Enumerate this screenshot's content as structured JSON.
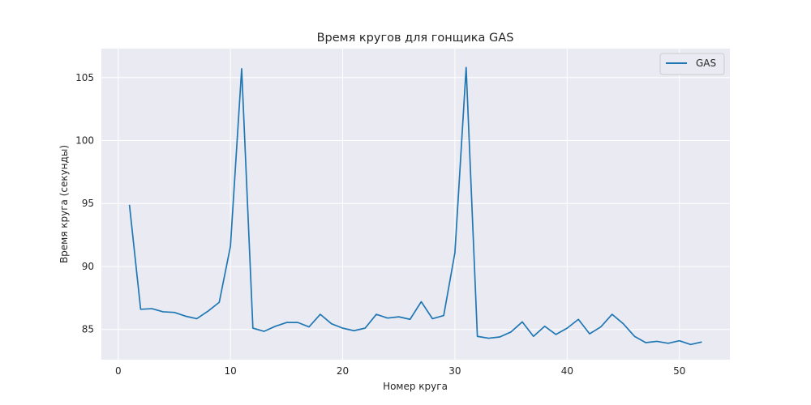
{
  "chart_data": {
    "type": "line",
    "title": "Время кругов для гонщика GAS",
    "xlabel": "Номер круга",
    "ylabel": "Время круга (секунды)",
    "xlim": [
      -1.5,
      54.5
    ],
    "ylim": [
      82.6,
      107.3
    ],
    "x_ticks": [
      0,
      10,
      20,
      30,
      40,
      50
    ],
    "y_ticks": [
      85,
      90,
      95,
      100,
      105
    ],
    "grid": true,
    "legend_position": "top-right",
    "colors": {
      "background": "#eaeaf2",
      "grid": "#ffffff",
      "line": "#1f77b4"
    },
    "series": [
      {
        "name": "GAS",
        "x": [
          1,
          2,
          3,
          4,
          5,
          6,
          7,
          8,
          9,
          10,
          11,
          12,
          13,
          14,
          15,
          16,
          17,
          18,
          19,
          20,
          21,
          22,
          23,
          24,
          25,
          26,
          27,
          28,
          29,
          30,
          31,
          32,
          33,
          34,
          35,
          36,
          37,
          38,
          39,
          40,
          41,
          42,
          43,
          44,
          45,
          46,
          47,
          48,
          49,
          50,
          51,
          52
        ],
        "values": [
          94.9,
          86.6,
          86.65,
          86.4,
          86.35,
          86.05,
          85.85,
          86.45,
          87.15,
          91.6,
          105.7,
          85.1,
          84.85,
          85.25,
          85.55,
          85.55,
          85.2,
          86.2,
          85.45,
          85.1,
          84.9,
          85.1,
          86.2,
          85.9,
          86.0,
          85.8,
          87.2,
          85.85,
          86.1,
          91.1,
          105.8,
          84.45,
          84.3,
          84.4,
          84.8,
          85.6,
          84.45,
          85.25,
          84.6,
          85.1,
          85.8,
          84.65,
          85.2,
          86.2,
          85.45,
          84.45,
          83.95,
          84.05,
          83.9,
          84.1,
          83.8,
          84.0
        ]
      }
    ]
  }
}
